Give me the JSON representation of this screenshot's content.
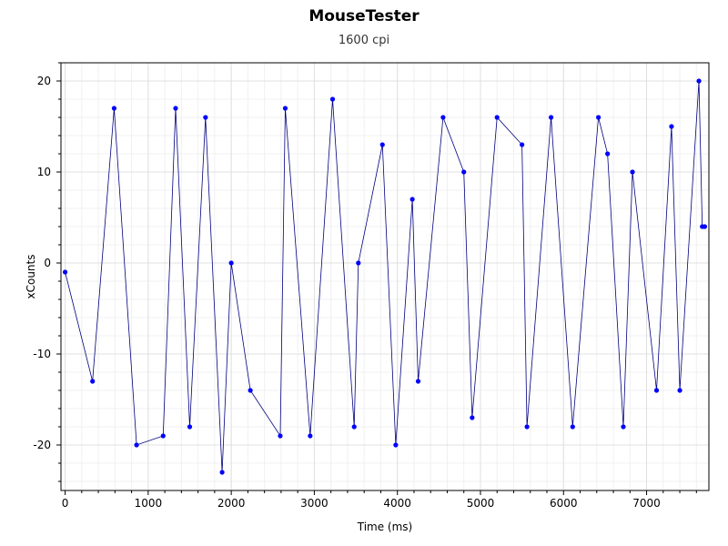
{
  "chart_data": {
    "type": "scatter",
    "title": "MouseTester",
    "subtitle": "1600 cpi",
    "xlabel": "Time (ms)",
    "ylabel": "xCounts",
    "xlim": [
      -50,
      7750
    ],
    "ylim": [
      -25,
      22
    ],
    "xticks": [
      0,
      1000,
      2000,
      3000,
      4000,
      5000,
      6000,
      7000
    ],
    "yticks": [
      -20,
      -10,
      0,
      10,
      20
    ],
    "grid": true,
    "legend": false,
    "series_color": "#0000ff",
    "line_color": "#000080",
    "series": [
      {
        "x": [
          0,
          330,
          590,
          860,
          1180,
          1330,
          1500,
          1690,
          1890,
          2000,
          2230,
          2590,
          2650,
          2950,
          3220,
          3480,
          3530,
          3820,
          3980,
          4180,
          4250,
          4550,
          4800,
          4900,
          5200,
          5500,
          5560,
          5850,
          6110,
          6420,
          6530,
          6720,
          6830,
          7120,
          7300,
          7400,
          7630,
          7670,
          7700
        ],
        "y": [
          -1,
          -13,
          17,
          -20,
          -19,
          17,
          -18,
          16,
          -23,
          0,
          -14,
          -19,
          17,
          -19,
          18,
          -18,
          0,
          13,
          -20,
          7,
          -13,
          16,
          10,
          -17,
          16,
          13,
          -18,
          16,
          -18,
          16,
          12,
          -18,
          10,
          -14,
          15,
          -14,
          20,
          4,
          4
        ]
      }
    ]
  }
}
